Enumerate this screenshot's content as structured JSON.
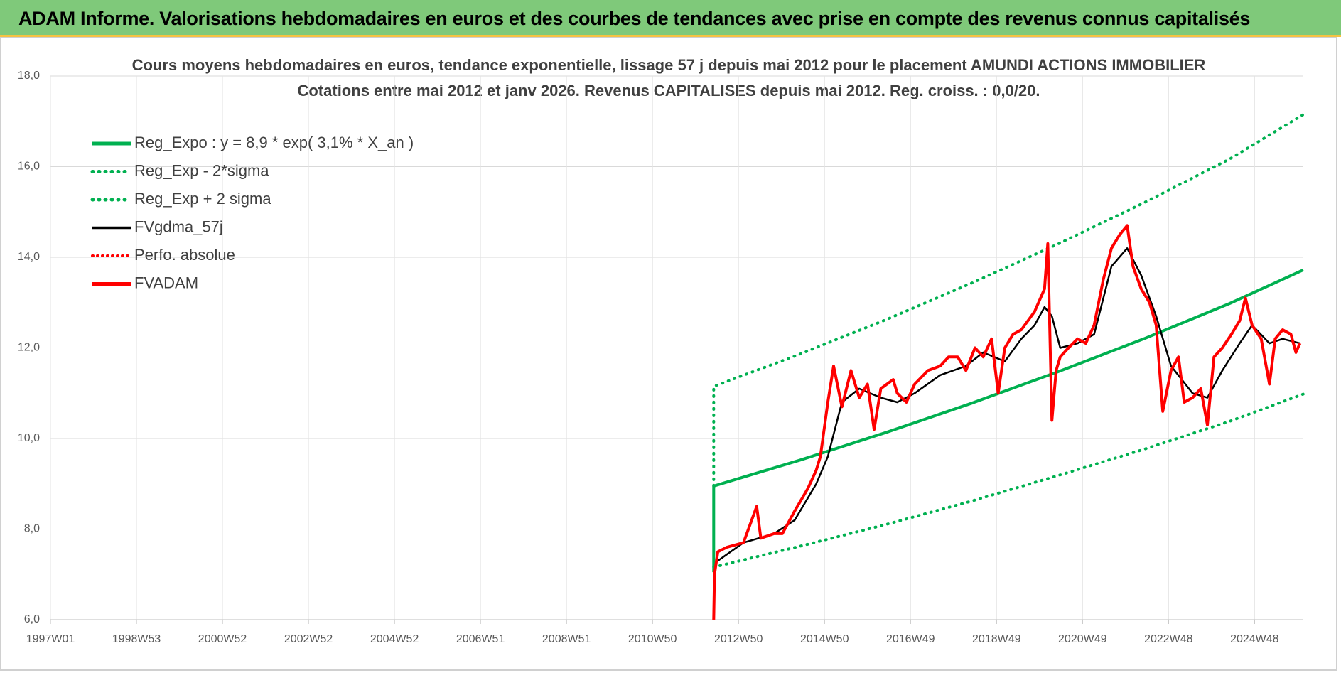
{
  "header": "ADAM Informe. Valorisations hebdomadaires en euros et des courbes de tendances avec prise en compte des revenus connus capitalisés",
  "chart_data": {
    "type": "line",
    "title": "Cours moyens hebdomadaires en euros, tendance exponentielle, lissage 57 j depuis mai 2012 pour le placement AMUNDI ACTIONS IMMOBILIER",
    "subtitle": "Cotations entre mai 2012 et janv 2026. Revenus CAPITALISES depuis mai 2012. Reg. croiss. : 0,0/20.",
    "xlim": [
      0,
      1515
    ],
    "xticks": [
      {
        "value": 0,
        "label": "1997W01"
      },
      {
        "value": 104,
        "label": "1998W53"
      },
      {
        "value": 208,
        "label": "2000W52"
      },
      {
        "value": 312,
        "label": "2002W52"
      },
      {
        "value": 416,
        "label": "2004W52"
      },
      {
        "value": 520,
        "label": "2006W51"
      },
      {
        "value": 624,
        "label": "2008W51"
      },
      {
        "value": 728,
        "label": "2010W50"
      },
      {
        "value": 832,
        "label": "2012W50"
      },
      {
        "value": 936,
        "label": "2014W50"
      },
      {
        "value": 1040,
        "label": "2016W49"
      },
      {
        "value": 1144,
        "label": "2018W49"
      },
      {
        "value": 1248,
        "label": "2020W49"
      },
      {
        "value": 1352,
        "label": "2022W48"
      },
      {
        "value": 1456,
        "label": "2024W48"
      }
    ],
    "ylim": [
      6,
      18
    ],
    "yticks": [
      {
        "value": 6,
        "label": "6,0"
      },
      {
        "value": 8,
        "label": "8,0"
      },
      {
        "value": 10,
        "label": "10,0"
      },
      {
        "value": 12,
        "label": "12,0"
      },
      {
        "value": 14,
        "label": "14,0"
      },
      {
        "value": 16,
        "label": "16,0"
      },
      {
        "value": 18,
        "label": "18,0"
      }
    ],
    "grid": true,
    "legend": "upper left",
    "series": [
      {
        "name": "Reg_Expo : y = 8,9 * exp( 3,1% *  X_an )",
        "color": "#00b050",
        "style": "solid",
        "width": 4,
        "x": [
          802,
          802,
          906,
          1010,
          1114,
          1218,
          1322,
          1426,
          1515
        ],
        "values": [
          7.05,
          8.95,
          9.52,
          10.13,
          10.78,
          11.47,
          12.2,
          12.98,
          13.72
        ]
      },
      {
        "name": "Reg_Exp - 2*sigma",
        "color": "#00b050",
        "style": "dotted",
        "width": 4,
        "x": [
          802,
          906,
          1010,
          1114,
          1218,
          1322,
          1426,
          1515
        ],
        "values": [
          7.16,
          7.62,
          8.1,
          8.62,
          9.18,
          9.76,
          10.38,
          10.98
        ]
      },
      {
        "name": "Reg_Exp + 2 sigma",
        "color": "#00b050",
        "style": "dotted",
        "width": 4,
        "x": [
          802,
          802,
          906,
          1010,
          1114,
          1218,
          1322,
          1426,
          1515
        ],
        "values": [
          8.95,
          11.15,
          11.86,
          12.62,
          13.43,
          14.29,
          15.2,
          16.17,
          17.15
        ]
      },
      {
        "name": "FVgdma_57j",
        "color": "#000000",
        "style": "solid",
        "width": 2.5,
        "x": [
          807,
          838,
          875,
          900,
          926,
          940,
          957,
          978,
          1004,
          1024,
          1045,
          1076,
          1107,
          1128,
          1154,
          1174,
          1190,
          1202,
          1211,
          1221,
          1242,
          1262,
          1283,
          1302,
          1319,
          1337,
          1355,
          1381,
          1399,
          1417,
          1438,
          1453,
          1474,
          1490,
          1511
        ],
        "values": [
          7.3,
          7.7,
          7.9,
          8.2,
          9.0,
          9.6,
          10.8,
          11.1,
          10.9,
          10.8,
          11.0,
          11.4,
          11.6,
          11.9,
          11.7,
          12.2,
          12.5,
          12.9,
          12.7,
          12.0,
          12.1,
          12.3,
          13.8,
          14.2,
          13.6,
          12.7,
          11.6,
          11.0,
          10.9,
          11.5,
          12.1,
          12.5,
          12.1,
          12.2,
          12.1
        ]
      },
      {
        "name": "Perfo. absolue",
        "color": "#ff0000",
        "style": "dotted",
        "width": 3,
        "x": [],
        "values": []
      },
      {
        "name": "FVADAM",
        "color": "#ff0000",
        "style": "solid",
        "width": 4,
        "x": [
          802,
          803,
          807,
          818,
          838,
          854,
          859,
          875,
          885,
          900,
          916,
          926,
          931,
          940,
          947,
          957,
          968,
          978,
          988,
          996,
          1004,
          1019,
          1024,
          1035,
          1045,
          1061,
          1076,
          1086,
          1097,
          1107,
          1118,
          1128,
          1138,
          1146,
          1154,
          1164,
          1174,
          1190,
          1202,
          1206,
          1211,
          1216,
          1221,
          1231,
          1242,
          1252,
          1262,
          1273,
          1283,
          1293,
          1302,
          1309,
          1319,
          1329,
          1337,
          1345,
          1355,
          1364,
          1371,
          1381,
          1391,
          1399,
          1407,
          1417,
          1428,
          1438,
          1445,
          1453,
          1464,
          1474,
          1481,
          1490,
          1500,
          1506,
          1511
        ],
        "values": [
          6.0,
          7.0,
          7.5,
          7.6,
          7.7,
          8.5,
          7.8,
          7.9,
          7.9,
          8.4,
          8.9,
          9.3,
          9.6,
          10.8,
          11.6,
          10.7,
          11.5,
          10.9,
          11.2,
          10.2,
          11.1,
          11.3,
          11.0,
          10.8,
          11.2,
          11.5,
          11.6,
          11.8,
          11.8,
          11.5,
          12.0,
          11.8,
          12.2,
          11.0,
          12.0,
          12.3,
          12.4,
          12.8,
          13.3,
          14.3,
          10.4,
          11.5,
          11.8,
          12.0,
          12.2,
          12.1,
          12.5,
          13.5,
          14.2,
          14.5,
          14.7,
          13.8,
          13.3,
          13.0,
          12.5,
          10.6,
          11.5,
          11.8,
          10.8,
          10.9,
          11.1,
          10.3,
          11.8,
          12.0,
          12.3,
          12.6,
          13.1,
          12.5,
          12.2,
          11.2,
          12.2,
          12.4,
          12.3,
          11.9,
          12.1
        ]
      }
    ]
  }
}
